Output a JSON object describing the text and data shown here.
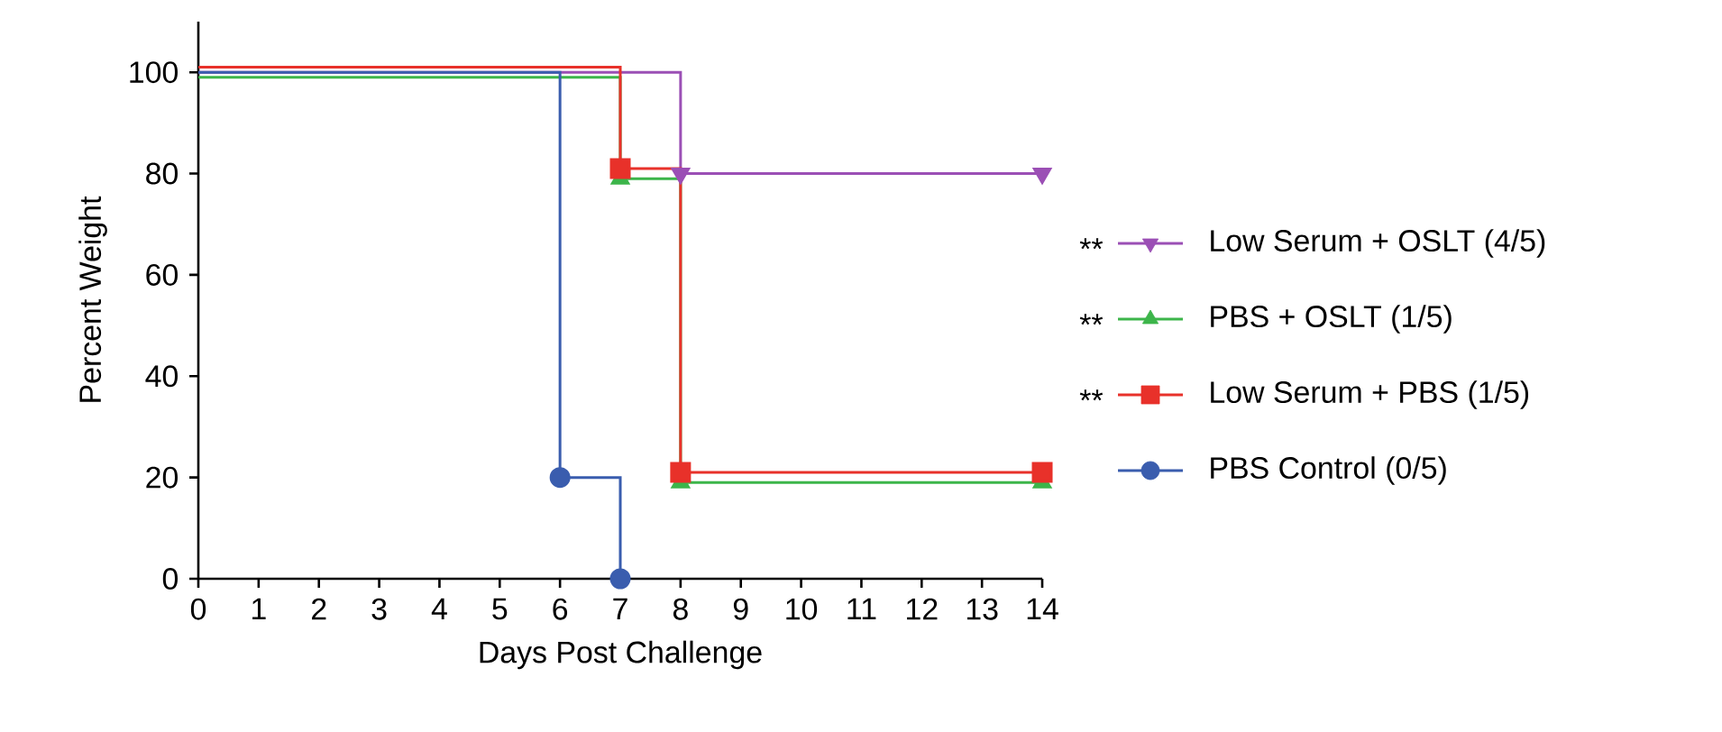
{
  "chart_data": {
    "type": "step",
    "xlabel": "Days Post Challenge",
    "ylabel": "Percent Weight",
    "xlim": [
      0,
      14
    ],
    "xticks": [
      0,
      1,
      2,
      3,
      4,
      5,
      6,
      7,
      8,
      9,
      10,
      11,
      12,
      13,
      14
    ],
    "ylim": [
      0,
      110
    ],
    "yticks": [
      0,
      20,
      40,
      60,
      80,
      100
    ],
    "legend": "right",
    "grid": false,
    "annotations": [
      "**",
      "**",
      "**"
    ],
    "series": [
      {
        "name": "Low Serum + OSLT (4/5)",
        "color": "#9b4fb5",
        "marker": "triangle down",
        "x": [
          0,
          8,
          14
        ],
        "values": [
          100,
          80,
          80
        ]
      },
      {
        "name": "PBS + OSLT (1/5)",
        "color": "#3cb54a",
        "marker": "triangle",
        "x": [
          0,
          7,
          8,
          14
        ],
        "values": [
          99,
          79,
          19,
          19
        ]
      },
      {
        "name": "Low Serum + PBS (1/5)",
        "color": "#e8312a",
        "marker": "square",
        "x": [
          0,
          7,
          8,
          14
        ],
        "values": [
          101,
          81,
          21,
          21
        ]
      },
      {
        "name": "PBS Control (0/5)",
        "color": "#3a5dae",
        "marker": "circle",
        "x": [
          0,
          6,
          7
        ],
        "values": [
          100,
          20,
          0
        ]
      }
    ]
  }
}
